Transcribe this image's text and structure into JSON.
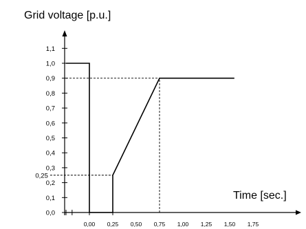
{
  "chart_data": {
    "type": "line",
    "title": "",
    "ylabel": "Grid voltage [p.u.]",
    "xlabel": "Time [sec.]",
    "yticks": [
      "0,0",
      "0,1",
      "0,2",
      "0,3",
      "0,4",
      "0,5",
      "0,6",
      "0,7",
      "0,8",
      "0,9",
      "1,0",
      "1,1"
    ],
    "ytick_values": [
      0,
      0.1,
      0.2,
      0.3,
      0.4,
      0.5,
      0.6,
      0.7,
      0.8,
      0.9,
      1.0,
      1.1
    ],
    "xticks": [
      "0,00",
      "0,25",
      "0,50",
      "0,75",
      "1,00",
      "1,25",
      "1,50",
      "1,75"
    ],
    "xtick_values": [
      0,
      0.25,
      0.5,
      0.75,
      1.0,
      1.25,
      1.5,
      1.75
    ],
    "xlim": [
      -0.25,
      1.85
    ],
    "ylim": [
      0,
      1.15
    ],
    "grid": false,
    "series": [
      {
        "x": [
          -0.25,
          0.0,
          0.0,
          0.25,
          0.25,
          0.75,
          1.55
        ],
        "y": [
          1.0,
          1.0,
          0.0,
          0.0,
          0.25,
          0.9,
          0.9
        ]
      }
    ],
    "reference_lines": [
      {
        "orientation": "horizontal",
        "value": 0.9,
        "from": -0.25,
        "to": 0.75
      },
      {
        "orientation": "horizontal",
        "value": 0.25,
        "from": -0.42,
        "to": 0.25,
        "label": "0,25"
      },
      {
        "orientation": "vertical",
        "value": 0.75,
        "from": 0.0,
        "to": 0.9
      }
    ],
    "line_color": "#000000"
  }
}
